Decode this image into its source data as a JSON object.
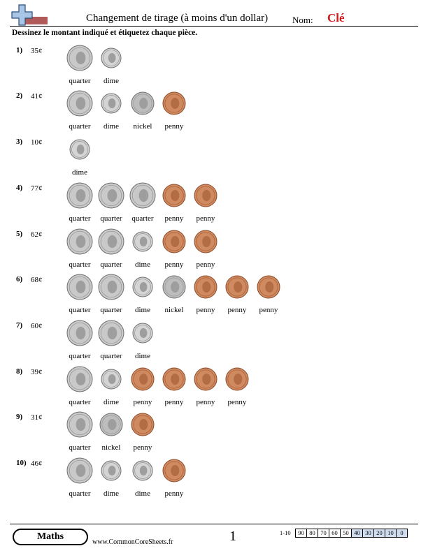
{
  "header": {
    "title": "Changement de tirage (à moins d'un dollar)",
    "name_label": "Nom:",
    "name_value": "Clé"
  },
  "instructions": "Dessinez le montant indiqué et étiquetez chaque pièce.",
  "problems": [
    {
      "number": "1)",
      "amount": "35¢",
      "coins": [
        "quarter",
        "dime"
      ]
    },
    {
      "number": "2)",
      "amount": "41¢",
      "coins": [
        "quarter",
        "dime",
        "nickel",
        "penny"
      ]
    },
    {
      "number": "3)",
      "amount": "10¢",
      "coins": [
        "dime"
      ]
    },
    {
      "number": "4)",
      "amount": "77¢",
      "coins": [
        "quarter",
        "quarter",
        "quarter",
        "penny",
        "penny"
      ]
    },
    {
      "number": "5)",
      "amount": "62¢",
      "coins": [
        "quarter",
        "quarter",
        "dime",
        "penny",
        "penny"
      ]
    },
    {
      "number": "6)",
      "amount": "68¢",
      "coins": [
        "quarter",
        "quarter",
        "dime",
        "nickel",
        "penny",
        "penny",
        "penny"
      ]
    },
    {
      "number": "7)",
      "amount": "60¢",
      "coins": [
        "quarter",
        "quarter",
        "dime"
      ]
    },
    {
      "number": "8)",
      "amount": "39¢",
      "coins": [
        "quarter",
        "dime",
        "penny",
        "penny",
        "penny",
        "penny"
      ]
    },
    {
      "number": "9)",
      "amount": "31¢",
      "coins": [
        "quarter",
        "nickel",
        "penny"
      ]
    },
    {
      "number": "10)",
      "amount": "46¢",
      "coins": [
        "quarter",
        "dime",
        "dime",
        "penny"
      ]
    }
  ],
  "coin_colors": {
    "quarter": "#c9c9c9",
    "dime": "#d4d4d4",
    "nickel": "#bdbdbd",
    "penny": "#d08a60"
  },
  "footer": {
    "subject": "Maths",
    "website": "www.CommonCoreSheets.fr",
    "page_number": "1",
    "score_range": "1-10",
    "scores": [
      "90",
      "80",
      "70",
      "60",
      "50",
      "40",
      "30",
      "20",
      "10",
      "0"
    ]
  }
}
